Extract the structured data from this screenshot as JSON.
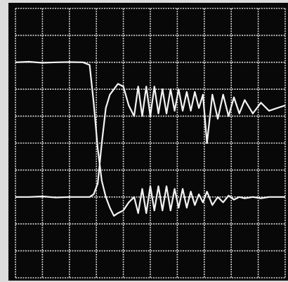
{
  "chart_data": {
    "type": "line",
    "x": [
      0,
      0.5,
      1,
      1.5,
      2,
      2.5,
      2.75,
      2.9,
      3.05,
      3.2,
      3.35,
      3.5,
      3.65,
      3.8,
      4.0,
      4.2,
      4.4,
      4.55,
      4.7,
      4.85,
      5.0,
      5.15,
      5.3,
      5.45,
      5.6,
      5.75,
      5.9,
      6.05,
      6.2,
      6.35,
      6.5,
      6.65,
      6.8,
      6.95,
      7.1,
      7.3,
      7.5,
      7.7,
      7.9,
      8.1,
      8.3,
      8.5,
      8.8,
      9.1,
      9.4,
      9.7,
      10
    ],
    "series": [
      {
        "color": "#f4f4f4",
        "values": [
          8.0,
          8.02,
          7.98,
          8.0,
          8.01,
          8.0,
          7.9,
          6.5,
          4.8,
          3.6,
          3.0,
          2.6,
          2.3,
          2.4,
          2.5,
          2.8,
          3.0,
          2.4,
          3.3,
          2.4,
          3.4,
          2.5,
          3.4,
          2.5,
          3.4,
          2.5,
          3.3,
          2.6,
          3.3,
          2.6,
          3.2,
          2.7,
          3.1,
          2.8,
          3.2,
          2.7,
          3.0,
          2.8,
          3.05,
          2.9,
          3.0,
          2.95,
          3.0,
          2.95,
          3.0,
          3.0,
          3.0
        ]
      },
      {
        "color": "#f4f4f4",
        "values": [
          3.0,
          3.0,
          3.02,
          2.98,
          3.0,
          3.0,
          3.0,
          3.1,
          3.5,
          5.0,
          6.3,
          6.8,
          7.0,
          7.2,
          7.1,
          6.4,
          6.0,
          7.1,
          6.0,
          7.1,
          6.0,
          7.1,
          6.1,
          7.0,
          6.1,
          7.0,
          6.2,
          7.0,
          6.2,
          6.9,
          6.2,
          6.9,
          6.3,
          6.8,
          5.0,
          6.8,
          5.9,
          6.8,
          6.0,
          6.7,
          6.1,
          6.6,
          6.1,
          6.5,
          6.2,
          6.3,
          6.4
        ]
      }
    ],
    "xlim": [
      0,
      10
    ],
    "ylim": [
      0,
      10
    ],
    "xticks": [
      0,
      1,
      2,
      3,
      4,
      5,
      6,
      7,
      8,
      9,
      10
    ],
    "yticks": [
      0,
      1,
      2,
      3,
      4,
      5,
      6,
      7,
      8,
      9,
      10
    ],
    "grid": true,
    "tick_labels": false
  }
}
